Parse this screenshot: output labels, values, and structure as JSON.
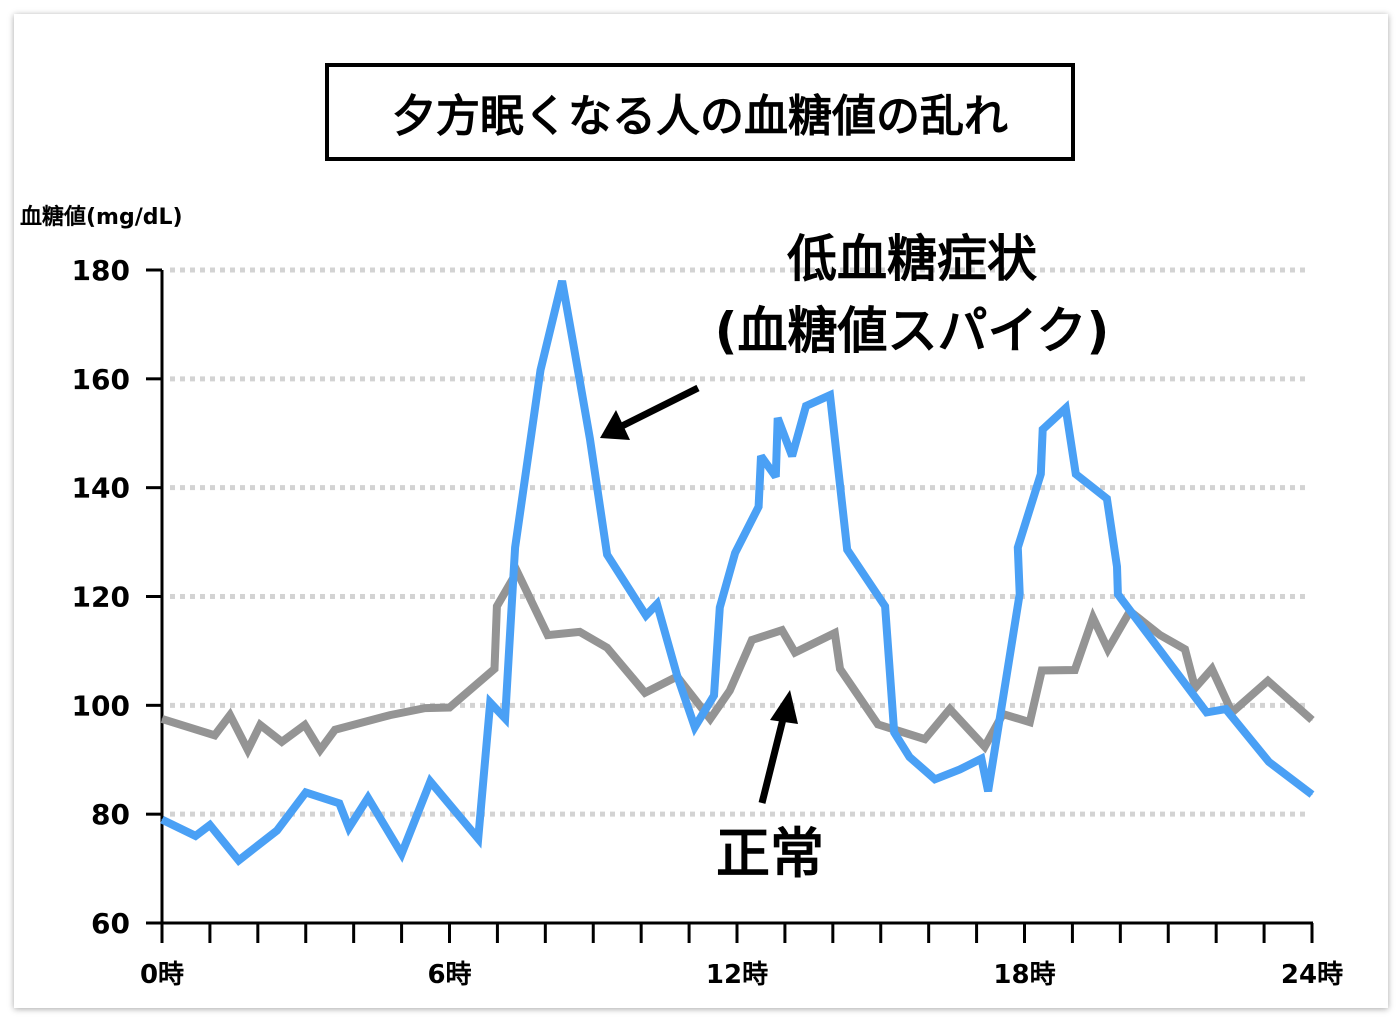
{
  "chart_data": {
    "type": "line",
    "title": "夕方眠くなる人の血糖値の乱れ",
    "ylabel": "血糖値(mg/dL)",
    "xlabel": "",
    "ylim": [
      60,
      180
    ],
    "xlim": [
      0,
      24
    ],
    "yticks": [
      60,
      80,
      100,
      120,
      140,
      160,
      180
    ],
    "xtick_labels": [
      {
        "x": 0,
        "label": "0時"
      },
      {
        "x": 6,
        "label": "6時"
      },
      {
        "x": 12,
        "label": "12時"
      },
      {
        "x": 18,
        "label": "18時"
      },
      {
        "x": 24,
        "label": "24時"
      }
    ],
    "grid": "horizontal dotted",
    "colors": {
      "spike": "#4aa0f5",
      "normal": "#949494",
      "grid": "#d3d3d3"
    },
    "series": [
      {
        "key": "spike",
        "x": [
          0,
          0.7,
          1.0,
          1.6,
          2.4,
          3.0,
          3.7,
          3.9,
          4.3,
          5.0,
          5.6,
          6.6,
          6.85,
          7.16,
          7.37,
          7.9,
          8.35,
          8.6,
          8.93,
          9.29,
          10.1,
          10.33,
          10.75,
          11.12,
          11.52,
          11.64,
          11.96,
          12.45,
          12.5,
          12.81,
          12.85,
          13.15,
          13.44,
          13.94,
          14.3,
          15.09,
          15.28,
          15.6,
          16.13,
          16.65,
          17.1,
          17.24,
          17.9,
          17.86,
          18.34,
          18.38,
          18.86,
          19.07,
          19.72,
          19.93,
          19.95,
          21.8,
          22.2,
          23.1,
          24.0
        ],
        "y": [
          79,
          76,
          78,
          71.5,
          77,
          84,
          82,
          77.5,
          83,
          72.7,
          86,
          75.5,
          100.5,
          97.6,
          129,
          161.6,
          178,
          165.6,
          149,
          127.7,
          116.5,
          118.6,
          105.5,
          96,
          101.8,
          118,
          128,
          136.5,
          145.8,
          142,
          152.8,
          145.8,
          155,
          157,
          128.6,
          118.2,
          95,
          90.5,
          86.4,
          88.2,
          90.2,
          84.2,
          120.5,
          129,
          142.5,
          150.7,
          154.6,
          142.5,
          138,
          125.5,
          120.4,
          98.7,
          99.3,
          89.6,
          83.6
        ]
      },
      {
        "key": "normal",
        "x": [
          0,
          1.1,
          1.42,
          1.79,
          2.05,
          2.5,
          2.98,
          3.3,
          3.61,
          4.76,
          5.49,
          6.0,
          6.94,
          6.99,
          7.41,
          8.05,
          8.72,
          9.29,
          10.08,
          10.75,
          11.44,
          11.85,
          12.31,
          12.94,
          13.21,
          14.04,
          14.15,
          14.94,
          15.92,
          16.44,
          17.17,
          17.55,
          18.11,
          18.36,
          19.05,
          19.43,
          19.74,
          20.2,
          20.83,
          21.35,
          21.56,
          21.91,
          22.33,
          23.08,
          24.0
        ],
        "y": [
          97.5,
          94.5,
          98.2,
          91.8,
          96.4,
          93.3,
          96.4,
          91.8,
          95.5,
          98.2,
          99.5,
          99.6,
          106.7,
          118.2,
          124.6,
          112.9,
          113.5,
          110.6,
          102.3,
          105.3,
          97.5,
          102.7,
          112,
          113.8,
          109.7,
          113.3,
          106.7,
          96.5,
          93.8,
          99.3,
          92.4,
          98.4,
          96.9,
          106.4,
          106.5,
          116.1,
          110.3,
          117.3,
          112.9,
          110.3,
          103.2,
          106.7,
          98.7,
          104.5,
          97.3
        ]
      }
    ],
    "annotations": {
      "spike_line1": "低血糖症状",
      "spike_line2": "(血糖値スパイク)",
      "normal": "正常"
    }
  }
}
